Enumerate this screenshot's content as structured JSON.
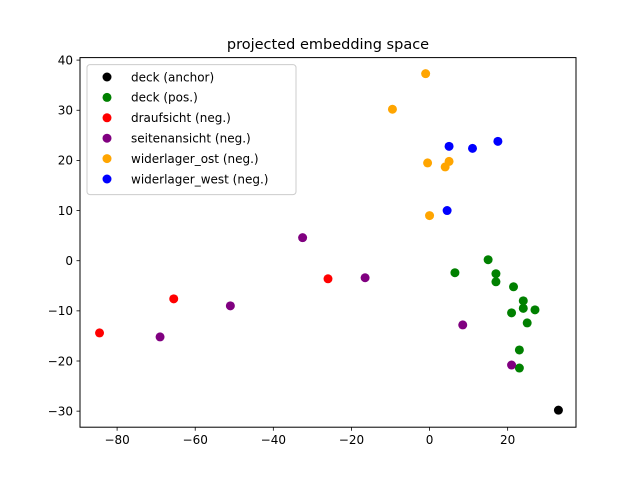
{
  "chart_data": {
    "type": "scatter",
    "title": "projected embedding space",
    "xlabel": "",
    "ylabel": "",
    "xlim": [
      -89.5,
      37.5
    ],
    "ylim": [
      -33.2,
      40.5
    ],
    "xticks": [
      -80,
      -60,
      -40,
      -20,
      0,
      20
    ],
    "yticks": [
      -30,
      -20,
      -10,
      0,
      10,
      20,
      30,
      40
    ],
    "xtick_labels": [
      "−80",
      "−60",
      "−40",
      "−20",
      "0",
      "20"
    ],
    "ytick_labels": [
      "−30",
      "−20",
      "−10",
      "0",
      "10",
      "20",
      "30",
      "40"
    ],
    "grid": false,
    "legend_position": "top-left",
    "series": [
      {
        "name": "deck (anchor)",
        "color": "#000000",
        "points": [
          [
            33.0,
            -29.8
          ]
        ]
      },
      {
        "name": "deck (pos.)",
        "color": "#008000",
        "points": [
          [
            15.0,
            0.2
          ],
          [
            6.5,
            -2.4
          ],
          [
            17.0,
            -2.6
          ],
          [
            17.0,
            -4.2
          ],
          [
            21.5,
            -5.2
          ],
          [
            24.0,
            -8.0
          ],
          [
            24.0,
            -9.5
          ],
          [
            27.0,
            -9.8
          ],
          [
            21.0,
            -10.4
          ],
          [
            25.0,
            -12.4
          ],
          [
            23.0,
            -17.8
          ],
          [
            23.0,
            -21.4
          ]
        ]
      },
      {
        "name": "draufsicht (neg.)",
        "color": "#ff0000",
        "points": [
          [
            -84.5,
            -14.4
          ],
          [
            -65.5,
            -7.6
          ],
          [
            -26.0,
            -3.6
          ]
        ]
      },
      {
        "name": "seitenansicht (neg.)",
        "color": "#800080",
        "points": [
          [
            -32.5,
            4.6
          ],
          [
            -16.5,
            -3.4
          ],
          [
            -51.0,
            -9.0
          ],
          [
            -69.0,
            -15.2
          ],
          [
            8.5,
            -12.8
          ],
          [
            21.0,
            -20.8
          ]
        ]
      },
      {
        "name": "widerlager_ost (neg.)",
        "color": "#ffa500",
        "points": [
          [
            -1.0,
            37.3
          ],
          [
            -9.5,
            30.2
          ],
          [
            -0.5,
            19.5
          ],
          [
            5.0,
            19.8
          ],
          [
            4.0,
            18.7
          ],
          [
            0.0,
            9.0
          ]
        ]
      },
      {
        "name": "widerlager_west (neg.)",
        "color": "#0000ff",
        "points": [
          [
            5.0,
            22.8
          ],
          [
            11.0,
            22.4
          ],
          [
            17.5,
            23.8
          ],
          [
            4.5,
            10.0
          ]
        ]
      }
    ]
  }
}
